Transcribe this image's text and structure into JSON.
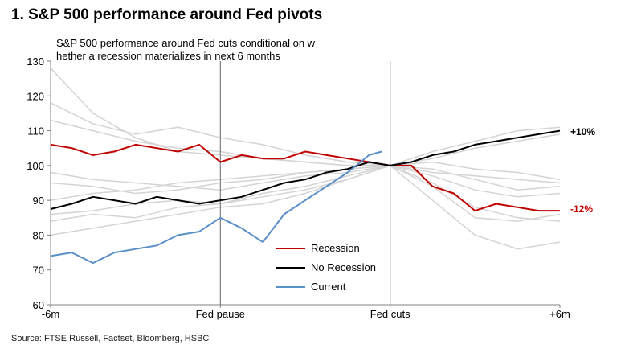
{
  "header": {
    "title": "1. S&P 500 performance around Fed pivots",
    "subtitle": "S&P 500 performance around Fed cuts conditional on w hether a recession materializes in next 6 months"
  },
  "footer": {
    "source": "Source: FTSE Russell, Factset, Bloomberg, HSBC"
  },
  "colors": {
    "recession": "#c00000",
    "no_recession": "#000000",
    "current": "#5b8fc8",
    "history": "#d4d4d4",
    "axis": "#808080"
  },
  "chart_data": {
    "type": "line",
    "title": "S&P 500 performance around Fed cuts conditional on w hether a recession materializes in next 6 months",
    "xlabel": "",
    "ylabel": "",
    "ylim": [
      60,
      130
    ],
    "yticks": [
      60,
      70,
      80,
      90,
      100,
      110,
      120,
      130
    ],
    "x_tick_labels": [
      "-6m",
      "Fed pause",
      "Fed cuts",
      "+6m"
    ],
    "x_tick_positions": [
      0,
      0.4,
      0.8,
      1.2
    ],
    "vertical_markers": [
      0.4,
      0.8
    ],
    "grid": false,
    "legend": {
      "placement": "bottom-center",
      "entries": [
        "Recession",
        "No Recession",
        "Current"
      ]
    },
    "annotations": [
      {
        "series": "No Recession",
        "text": "+10%"
      },
      {
        "series": "Recession",
        "text": "-12%"
      }
    ],
    "series": [
      {
        "name": "Recession",
        "x": [
          0,
          0.05,
          0.1,
          0.15,
          0.2,
          0.25,
          0.3,
          0.35,
          0.4,
          0.45,
          0.5,
          0.55,
          0.6,
          0.65,
          0.7,
          0.75,
          0.8,
          0.85,
          0.9,
          0.95,
          1.0,
          1.05,
          1.1,
          1.15,
          1.2
        ],
        "values": [
          106,
          105,
          103,
          104,
          106,
          105,
          104,
          106,
          101,
          103,
          102,
          102,
          104,
          103,
          102,
          101,
          100,
          100,
          94,
          92,
          87,
          89,
          88,
          87,
          87
        ]
      },
      {
        "name": "No Recession",
        "x": [
          0,
          0.05,
          0.1,
          0.15,
          0.2,
          0.25,
          0.3,
          0.35,
          0.4,
          0.45,
          0.5,
          0.55,
          0.6,
          0.65,
          0.7,
          0.75,
          0.8,
          0.85,
          0.9,
          0.95,
          1.0,
          1.05,
          1.1,
          1.15,
          1.2
        ],
        "values": [
          87.5,
          89,
          91,
          90,
          89,
          91,
          90,
          89,
          90,
          91,
          93,
          95,
          96,
          98,
          99,
          101,
          100,
          101,
          103,
          104,
          106,
          107,
          108,
          109,
          110
        ]
      },
      {
        "name": "Current",
        "x": [
          0,
          0.05,
          0.1,
          0.15,
          0.2,
          0.25,
          0.3,
          0.35,
          0.4,
          0.45,
          0.5,
          0.55,
          0.6,
          0.65,
          0.7,
          0.75,
          0.78
        ],
        "values": [
          74,
          75,
          72,
          75,
          76,
          77,
          80,
          81,
          85,
          82,
          78,
          86,
          90,
          94,
          98,
          103,
          104
        ]
      }
    ],
    "historical_episodes": [
      {
        "x": [
          0,
          0.1,
          0.2,
          0.3,
          0.4,
          0.5,
          0.6,
          0.7,
          0.8,
          0.9,
          1.0,
          1.1,
          1.2
        ],
        "values": [
          128,
          115,
          108,
          104,
          103,
          102,
          101,
          100,
          100,
          98,
          97,
          96,
          95
        ]
      },
      {
        "x": [
          0,
          0.1,
          0.2,
          0.3,
          0.4,
          0.5,
          0.6,
          0.7,
          0.8,
          0.9,
          1.0,
          1.1,
          1.2
        ],
        "values": [
          118,
          112,
          109,
          111,
          108,
          106,
          103,
          101,
          100,
          95,
          88,
          85,
          84
        ]
      },
      {
        "x": [
          0,
          0.1,
          0.2,
          0.3,
          0.4,
          0.5,
          0.6,
          0.7,
          0.8,
          0.9,
          1.0,
          1.1,
          1.2
        ],
        "values": [
          113,
          110,
          107,
          105,
          104,
          102,
          101,
          100,
          100,
          90,
          80,
          76,
          78
        ]
      },
      {
        "x": [
          0,
          0.1,
          0.2,
          0.3,
          0.4,
          0.5,
          0.6,
          0.7,
          0.8,
          0.9,
          1.0,
          1.1,
          1.2
        ],
        "values": [
          98,
          96,
          95,
          94,
          93,
          95,
          97,
          98,
          100,
          94,
          85,
          84,
          86
        ]
      },
      {
        "x": [
          0,
          0.1,
          0.2,
          0.3,
          0.4,
          0.5,
          0.6,
          0.7,
          0.8,
          0.9,
          1.0,
          1.1,
          1.2
        ],
        "values": [
          90,
          92,
          93,
          95,
          96,
          97,
          98,
          99,
          100,
          104,
          107,
          110,
          111
        ]
      },
      {
        "x": [
          0,
          0.1,
          0.2,
          0.3,
          0.4,
          0.5,
          0.6,
          0.7,
          0.8,
          0.9,
          1.0,
          1.1,
          1.2
        ],
        "values": [
          84,
          86,
          85,
          88,
          89,
          91,
          93,
          96,
          100,
          102,
          105,
          107,
          109
        ]
      },
      {
        "x": [
          0,
          0.1,
          0.2,
          0.3,
          0.4,
          0.5,
          0.6,
          0.7,
          0.8,
          0.9,
          1.0,
          1.1,
          1.2
        ],
        "values": [
          80,
          82,
          84,
          86,
          88,
          89,
          92,
          96,
          100,
          101,
          99,
          98,
          96
        ]
      },
      {
        "x": [
          0,
          0.1,
          0.2,
          0.3,
          0.4,
          0.5,
          0.6,
          0.7,
          0.8,
          0.9,
          1.0,
          1.1,
          1.2
        ],
        "values": [
          86,
          87,
          89,
          90,
          89,
          92,
          94,
          97,
          100,
          97,
          93,
          91,
          92
        ]
      },
      {
        "x": [
          0,
          0.1,
          0.2,
          0.3,
          0.4,
          0.5,
          0.6,
          0.7,
          0.8,
          0.9,
          1.0,
          1.1,
          1.2
        ],
        "values": [
          95,
          94,
          92,
          93,
          95,
          96,
          98,
          99,
          100,
          99,
          96,
          93,
          94
        ]
      }
    ]
  }
}
